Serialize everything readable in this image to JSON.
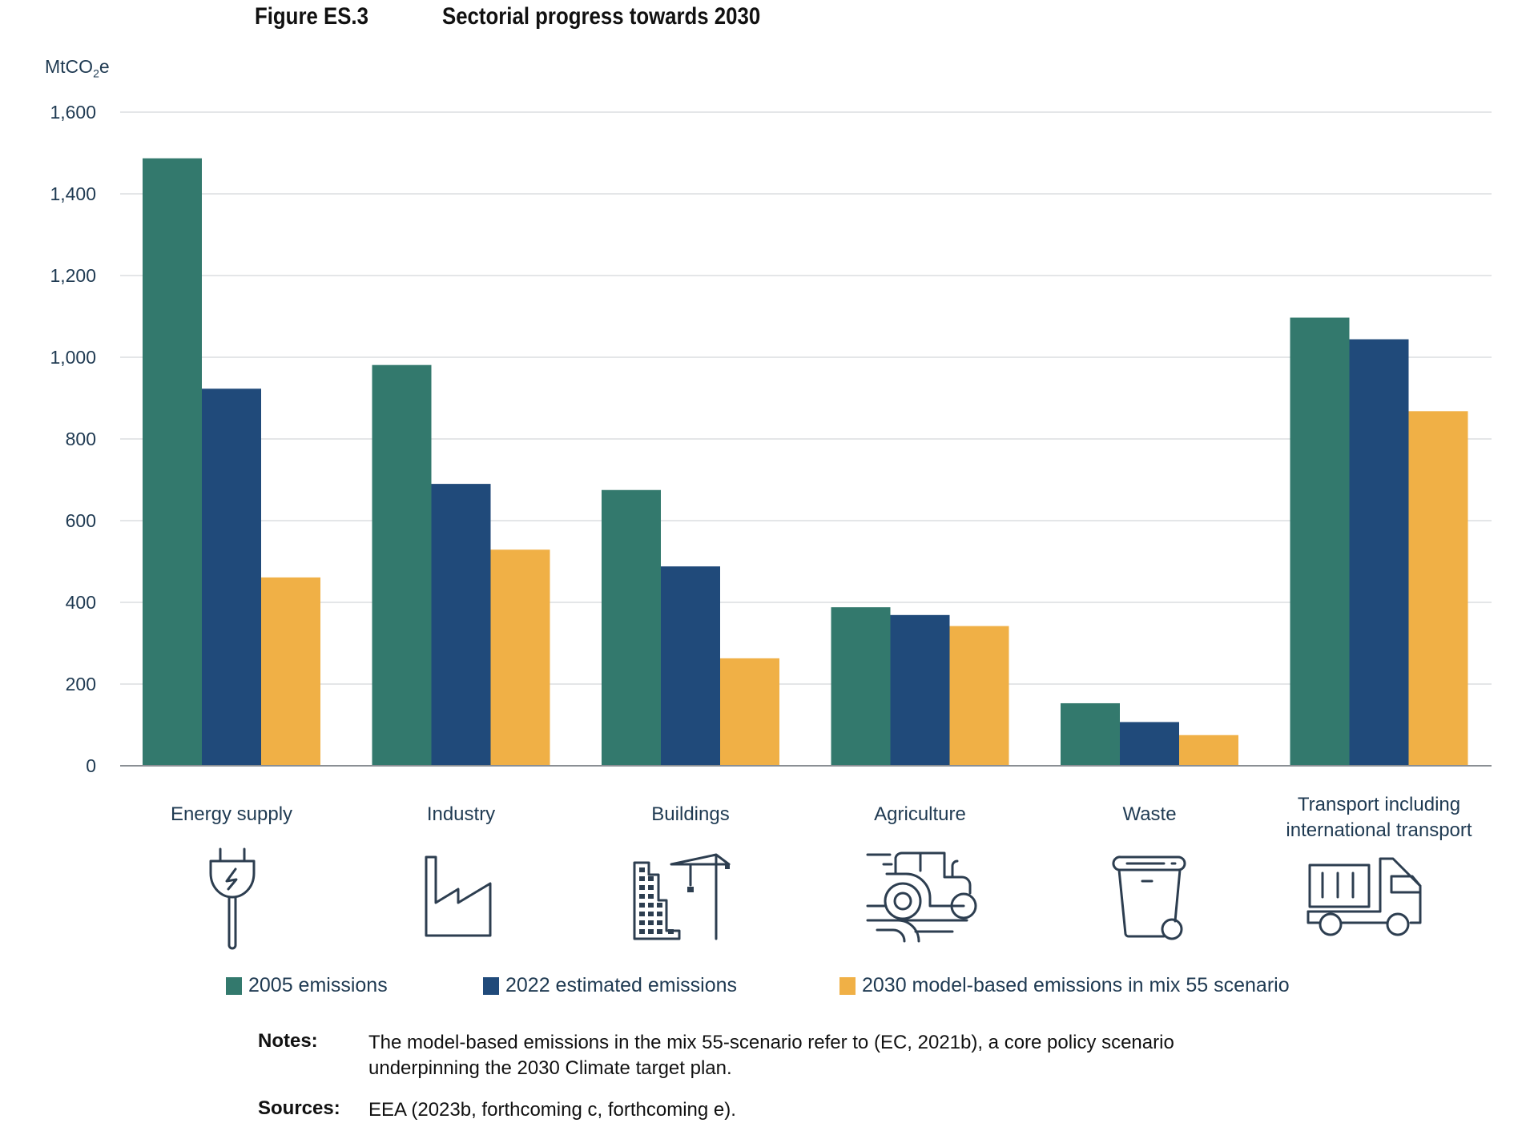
{
  "header": {
    "figure_number": "Figure ES.3",
    "figure_title": "Sectorial progress towards 2030"
  },
  "chart_data": {
    "type": "bar",
    "title": "Sectorial progress towards 2030",
    "ylabel": "MtCO2e",
    "ylabel_main": "MtCO",
    "ylabel_sub": "2",
    "ylabel_tail": "e",
    "xlabel": "",
    "ylim": [
      0,
      1600
    ],
    "yticks": [
      0,
      200,
      400,
      600,
      800,
      1000,
      1200,
      1400,
      1600
    ],
    "ytick_labels": [
      "0",
      "200",
      "400",
      "600",
      "800",
      "1,000",
      "1,200",
      "1,400",
      "1,600"
    ],
    "grid": true,
    "categories": [
      [
        "Energy supply"
      ],
      [
        "Industry"
      ],
      [
        "Buildings"
      ],
      [
        "Agriculture"
      ],
      [
        "Waste"
      ],
      [
        "Transport including",
        "international transport"
      ]
    ],
    "category_icons": [
      "plug-icon",
      "factory-icon",
      "building-crane-icon",
      "tractor-icon",
      "waste-bin-icon",
      "truck-icon"
    ],
    "series": [
      {
        "name": "2005 emissions",
        "color": "#33796d",
        "values": [
          1487,
          981,
          675,
          388,
          153,
          1097
        ]
      },
      {
        "name": "2022 estimated emissions",
        "color": "#204a7a",
        "values": [
          923,
          690,
          488,
          369,
          107,
          1044
        ]
      },
      {
        "name": "2030 model-based emissions in mix 55 scenario",
        "color": "#f0b046",
        "values": [
          461,
          529,
          263,
          342,
          75,
          868
        ]
      }
    ],
    "legend_position": "bottom"
  },
  "legend": [
    {
      "label": "2005 emissions",
      "color": "#33796d"
    },
    {
      "label": "2022 estimated emissions",
      "color": "#204a7a"
    },
    {
      "label": "2030 model-based emissions in mix 55 scenario",
      "color": "#f0b046"
    }
  ],
  "notes": {
    "label": "Notes:",
    "text": "The model-based emissions in the mix 55-scenario refer to (EC, 2021b), a core policy scenario underpinning the 2030 Climate target plan."
  },
  "sources": {
    "label": "Sources:",
    "text": "EEA (2023b, forthcoming c, forthcoming e)."
  }
}
